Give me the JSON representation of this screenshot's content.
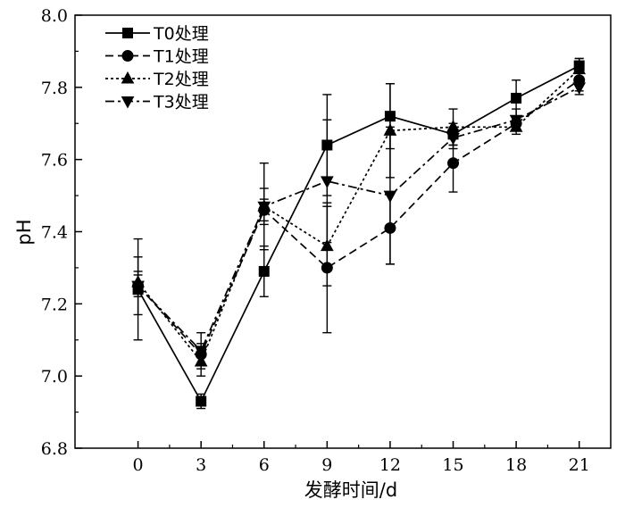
{
  "chart_data": {
    "type": "line",
    "title": "",
    "xlabel": "发酵时间/d",
    "ylabel": "pH",
    "x": [
      0,
      3,
      6,
      9,
      12,
      15,
      18,
      21
    ],
    "xticks": [
      "0",
      "3",
      "6",
      "9",
      "12",
      "15",
      "18",
      "21"
    ],
    "xlim": [
      -3,
      22.5
    ],
    "ylim": [
      6.8,
      8.0
    ],
    "yticks": [
      "6.8",
      "7.0",
      "7.2",
      "7.4",
      "7.6",
      "7.8",
      "8.0"
    ],
    "grid": false,
    "legend_position": "top-left",
    "series": [
      {
        "name": "T0处理",
        "marker": "square",
        "dash": "solid",
        "values": [
          7.24,
          6.93,
          7.29,
          7.64,
          7.72,
          7.67,
          7.77,
          7.86
        ],
        "errors": [
          0.14,
          0.02,
          0.07,
          0.14,
          0.09,
          0.03,
          0.05,
          0.02
        ]
      },
      {
        "name": "T1处理",
        "marker": "circle",
        "dash": "dashed",
        "values": [
          7.25,
          7.06,
          7.46,
          7.3,
          7.41,
          7.59,
          7.7,
          7.82
        ],
        "errors": [
          0.08,
          0.03,
          0.03,
          0.18,
          0.1,
          0.08,
          0.02,
          0.03
        ]
      },
      {
        "name": "T2处理",
        "marker": "triangle-up",
        "dash": "dotted",
        "values": [
          7.26,
          7.04,
          7.47,
          7.36,
          7.68,
          7.69,
          7.69,
          7.85
        ],
        "errors": [
          0.03,
          0.04,
          0.05,
          0.11,
          0.13,
          0.05,
          0.02,
          0.03
        ]
      },
      {
        "name": "T3处理",
        "marker": "triangle-down",
        "dash": "dashdot",
        "values": [
          7.25,
          7.07,
          7.47,
          7.54,
          7.5,
          7.66,
          7.71,
          7.8
        ],
        "errors": [
          0.03,
          0.05,
          0.12,
          0.17,
          0.19,
          0.03,
          0.03,
          0.02
        ]
      }
    ]
  }
}
